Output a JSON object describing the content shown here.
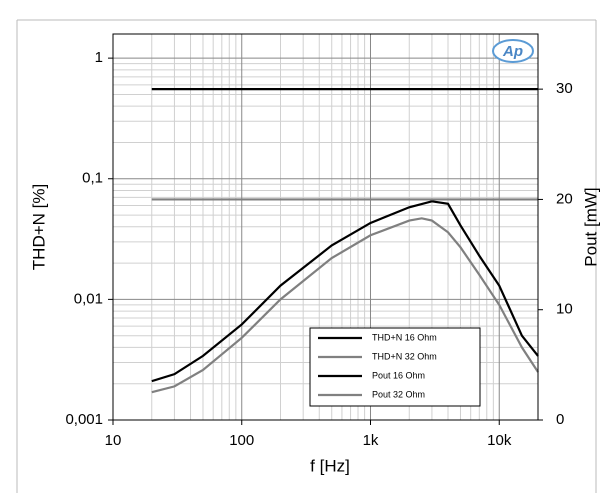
{
  "chart_data": {
    "type": "line",
    "xlabel": "f [Hz]",
    "ylabel": "THD+N [%]",
    "y2label": "Pout [mW]",
    "logo": "Ap",
    "xscale": "log",
    "yscale": "log",
    "grid": true,
    "xlim": [
      10,
      20000
    ],
    "ylim": [
      0.001,
      1.585
    ],
    "y2lim": [
      0,
      35
    ],
    "xticks": [
      10,
      100,
      {
        "value": 1000,
        "label": "1k"
      },
      {
        "value": 10000,
        "label": "10k"
      }
    ],
    "yticks": [
      {
        "value": 0.001,
        "label": "0,001"
      },
      {
        "value": 0.01,
        "label": "0,01"
      },
      {
        "value": 0.1,
        "label": "0,1"
      },
      1
    ],
    "y2ticks": [
      0,
      10,
      20,
      30
    ],
    "legend": "lower right",
    "series": [
      {
        "name": "THD+N 16 Ohm",
        "color": "#000000",
        "x": [
          20,
          30,
          50,
          100,
          200,
          500,
          1000,
          2000,
          3000,
          4000,
          5000,
          7000,
          10000,
          15000,
          20000
        ],
        "values": [
          0.0021,
          0.0024,
          0.0034,
          0.0062,
          0.013,
          0.028,
          0.043,
          0.058,
          0.065,
          0.062,
          0.041,
          0.023,
          0.013,
          0.005,
          0.0034
        ]
      },
      {
        "name": "THD+N 32 Ohm",
        "color": "#808080",
        "x": [
          20,
          30,
          50,
          100,
          200,
          500,
          1000,
          2000,
          2500,
          3000,
          4000,
          5000,
          7000,
          10000,
          15000,
          20000
        ],
        "values": [
          0.0017,
          0.0019,
          0.0026,
          0.0048,
          0.01,
          0.022,
          0.034,
          0.045,
          0.047,
          0.045,
          0.036,
          0.027,
          0.016,
          0.009,
          0.004,
          0.0025
        ]
      },
      {
        "name": "Pout 16 Ohm",
        "color": "#000000",
        "axis": "y2",
        "x": [
          20,
          20000
        ],
        "values": [
          30,
          30
        ]
      },
      {
        "name": "Pout 32 Ohm",
        "color": "#808080",
        "axis": "y2",
        "x": [
          20,
          20000
        ],
        "values": [
          20,
          20
        ]
      }
    ]
  }
}
